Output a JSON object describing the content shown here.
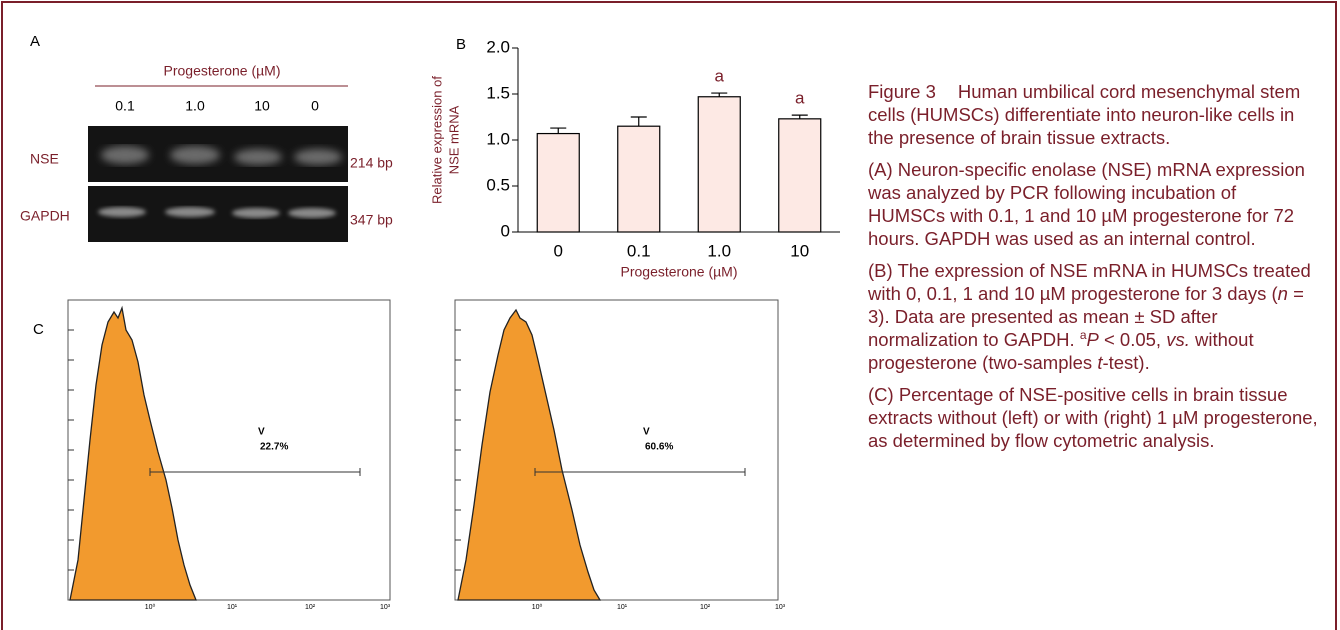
{
  "panel_a": {
    "label": "A",
    "treatment_label": "Progesterone (µM)",
    "lanes": [
      "0.1",
      "1.0",
      "10",
      "0"
    ],
    "rows": [
      {
        "name": "NSE",
        "size": "214 bp"
      },
      {
        "name": "GAPDH",
        "size": "347 bp"
      }
    ]
  },
  "chart_data": {
    "type": "bar",
    "panel_label": "B",
    "categories": [
      "0",
      "0.1",
      "1.0",
      "10"
    ],
    "values": [
      1.07,
      1.15,
      1.47,
      1.23
    ],
    "errors": [
      0.06,
      0.1,
      0.04,
      0.04
    ],
    "significance": [
      null,
      null,
      "a",
      "a"
    ],
    "color": "#fde9e4",
    "edge_color": "#000000",
    "ylim": [
      0,
      2
    ],
    "yticks": [
      0,
      0.5,
      {
        "value": 1,
        "label": "1.0"
      },
      1.5,
      {
        "value": 2,
        "label": "2.0"
      }
    ],
    "y_label": [
      "Relative expression of",
      "NSE mRNA"
    ],
    "x_label": "Progesterone (µM)"
  },
  "panel_c": {
    "label": "C",
    "plots": [
      {
        "gate_label": "V",
        "percent": "22.7%",
        "x_ticks": [
          "10⁰",
          "10¹",
          "10²",
          "10³"
        ]
      },
      {
        "gate_label": "V",
        "percent": "60.6%",
        "x_ticks": [
          "10⁰",
          "10¹",
          "10²",
          "10³"
        ]
      }
    ]
  },
  "caption": {
    "paragraphs": [
      {
        "runs": [
          {
            "text": "Figure 3",
            "label": true
          },
          {
            "text": "Human umbilical cord mesenchymal stem cells (HUMSCs) differentiate into neuron-like cells in the presence of brain tissue extracts."
          }
        ]
      },
      {
        "runs": [
          {
            "text": "(A) Neuron-specific enolase (NSE) mRNA expression was analyzed by PCR following incubation of HUMSCs with 0.1, 1 and 10 µM progesterone for 72 hours. GAPDH was used as an internal control."
          }
        ]
      },
      {
        "runs": [
          {
            "text": "(B) The expression of NSE mRNA in HUMSCs treated with 0, 0.1, 1 and 10 µM progesterone for 3 days ("
          },
          {
            "text": "n",
            "italic": true
          },
          {
            "text": " = 3). Data are presented as mean ± SD after normalization to GAPDH. "
          },
          {
            "text": "a",
            "sup": true
          },
          {
            "text": "P",
            "italic": true
          },
          {
            "text": " < 0.05, "
          },
          {
            "text": "vs.",
            "italic": true
          },
          {
            "text": " without progesterone (two-samples "
          },
          {
            "text": "t",
            "italic": true
          },
          {
            "text": "-test)."
          }
        ]
      },
      {
        "runs": [
          {
            "text": "(C) Percentage of NSE-positive cells in brain tissue extracts without (left) or with (right) 1 µM progesterone, as determined by flow cytometric analysis."
          }
        ]
      }
    ]
  }
}
